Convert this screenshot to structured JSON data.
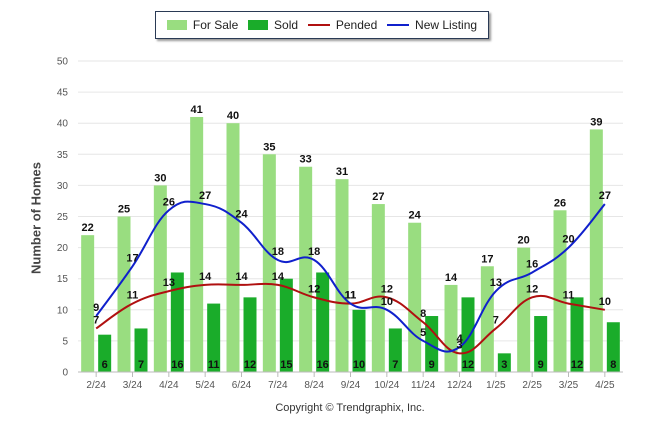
{
  "chart_data": {
    "type": "bar",
    "ylabel": "Number of Homes",
    "ylim": [
      0,
      50
    ],
    "yticks": [
      0,
      5,
      10,
      15,
      20,
      25,
      30,
      35,
      40,
      45,
      50
    ],
    "grid": true,
    "legend_position": "top-center",
    "categories": [
      "2/24",
      "3/24",
      "4/24",
      "5/24",
      "6/24",
      "7/24",
      "8/24",
      "9/24",
      "10/24",
      "11/24",
      "12/24",
      "1/25",
      "2/25",
      "3/25",
      "4/25"
    ],
    "series": [
      {
        "name": "For Sale",
        "kind": "bar",
        "color": "#99dd80",
        "values": [
          22,
          25,
          30,
          41,
          40,
          35,
          33,
          31,
          27,
          24,
          14,
          17,
          20,
          26,
          39
        ]
      },
      {
        "name": "Sold",
        "kind": "bar",
        "color": "#1aac2a",
        "values": [
          6,
          7,
          16,
          11,
          12,
          15,
          16,
          10,
          7,
          9,
          12,
          3,
          9,
          12,
          8
        ]
      },
      {
        "name": "Pended",
        "kind": "line",
        "color": "#b01010",
        "values": [
          7,
          11,
          13,
          14,
          14,
          14,
          12,
          11,
          12,
          8,
          3,
          7,
          12,
          11,
          10
        ]
      },
      {
        "name": "New Listing",
        "kind": "line",
        "color": "#1020cc",
        "values": [
          9,
          17,
          26,
          27,
          24,
          18,
          18,
          11,
          10,
          5,
          4,
          13,
          16,
          20,
          27
        ]
      }
    ],
    "footer": "Copyright © Trendgraphix, Inc."
  }
}
